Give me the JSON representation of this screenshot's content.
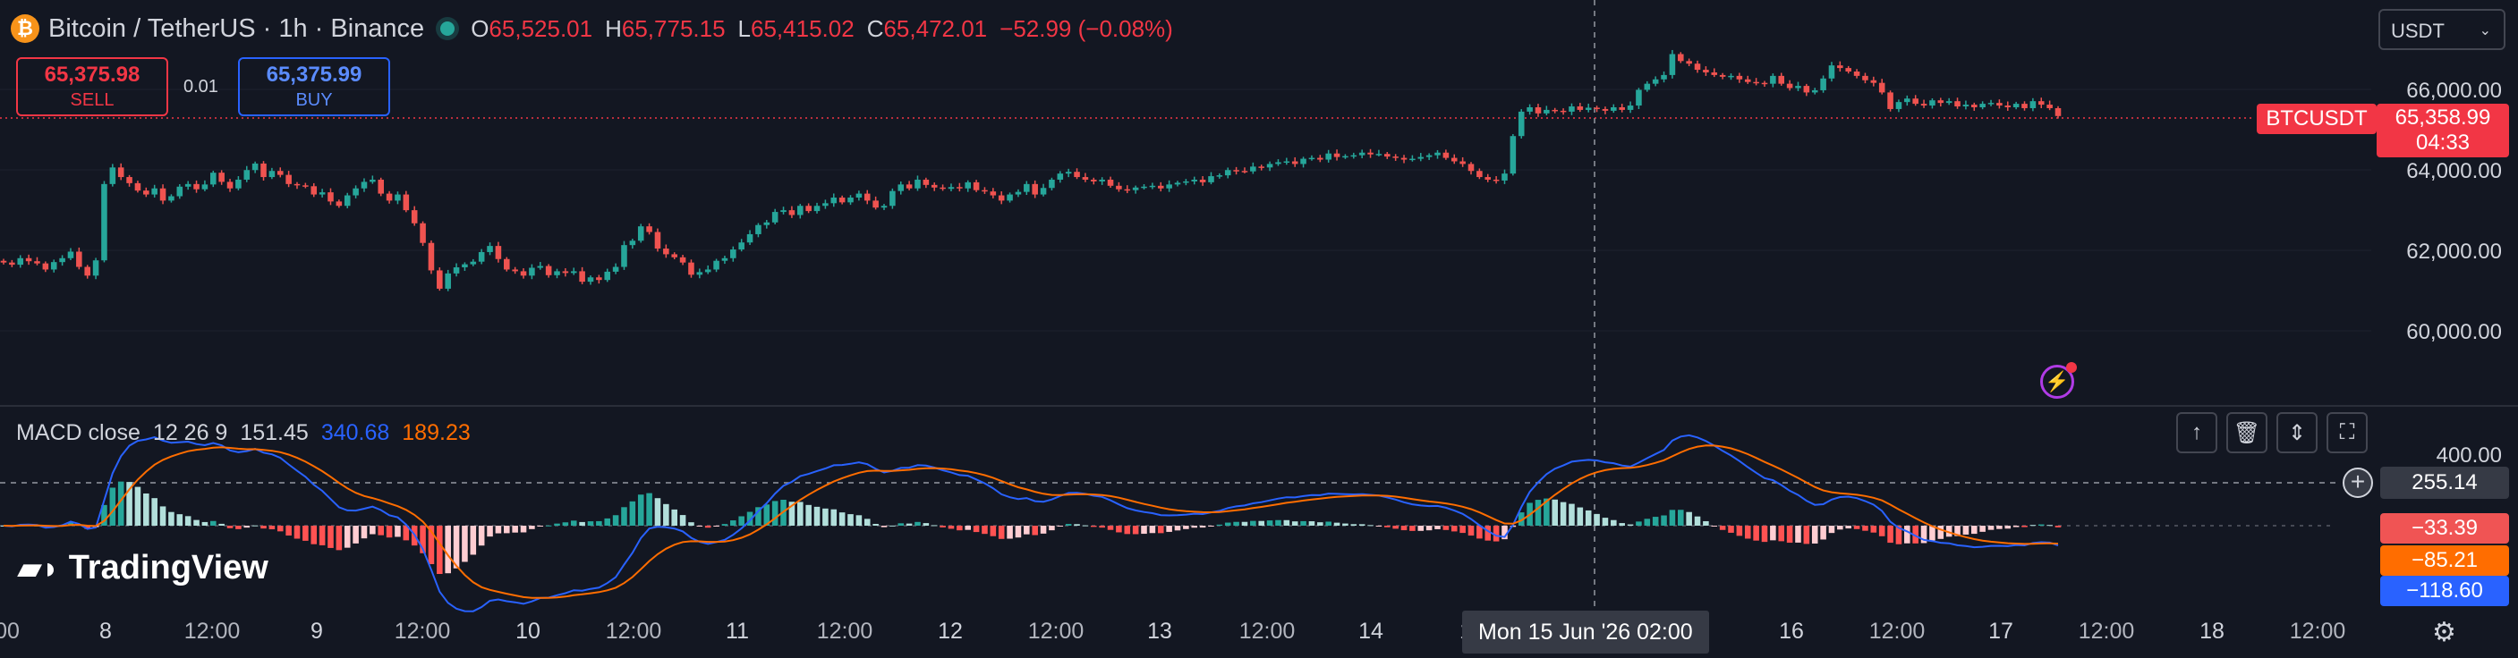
{
  "header": {
    "symbol_title": "Bitcoin / TetherUS · 1h · Binance",
    "ohlc": {
      "o_label": "O",
      "o_value": "65,525.01",
      "h_label": "H",
      "h_value": "65,775.15",
      "l_label": "L",
      "l_value": "65,415.02",
      "c_label": "C",
      "c_value": "65,472.01",
      "change": "−52.99 (−0.08%)"
    }
  },
  "trade": {
    "sell_price": "65,375.98",
    "sell_label": "SELL",
    "spread": "0.01",
    "buy_price": "65,375.99",
    "buy_label": "BUY"
  },
  "currency_select": {
    "value": "USDT"
  },
  "price_axis": {
    "labels": [
      "66,000.00",
      "64,000.00",
      "62,000.00",
      "60,000.00"
    ],
    "symbol_tag": "BTCUSDT",
    "last_price": "65,358.99",
    "countdown": "04:33"
  },
  "macd": {
    "legend_name": "MACD close",
    "params": "12 26 9",
    "histogram_value": "151.45",
    "macd_value": "340.68",
    "signal_value": "189.23",
    "axis_label_top": "400.00",
    "crosshair_value": "255.14",
    "tag_histogram": "−33.39",
    "tag_signal": "−85.21",
    "tag_macd": "−118.60"
  },
  "time_axis": {
    "labels": [
      "00",
      "8",
      "12:00",
      "9",
      "12:00",
      "10",
      "12:00",
      "11",
      "12:00",
      "12",
      "12:00",
      "13",
      "12:00",
      "14",
      "1",
      "16",
      "12:00",
      "17",
      "12:00",
      "18",
      "12:00"
    ],
    "crosshair_label": "Mon 15 Jun '26   02:00"
  },
  "branding": {
    "logo_text": "TradingView"
  },
  "colors": {
    "up": "#26a69a",
    "down": "#ef5350",
    "macd": "#2962ff",
    "signal": "#ff6d00",
    "background": "#131722"
  },
  "icons": [
    "bitcoin-icon",
    "market-status-dot-icon",
    "lightning-icon",
    "arrow-up-icon",
    "trash-icon",
    "collapse-icon",
    "maximize-icon",
    "plus-circle-icon",
    "gear-icon",
    "chevron-down-icon"
  ],
  "chart_data": {
    "type": "candlestick",
    "y_range": [
      59000,
      67200
    ],
    "closes": [
      62000,
      61950,
      62100,
      62030,
      61980,
      61840,
      62010,
      62100,
      62250,
      61900,
      61700,
      62050,
      63800,
      64180,
      63960,
      63820,
      63650,
      63560,
      63700,
      63420,
      63520,
      63740,
      63800,
      63680,
      63790,
      64060,
      63850,
      63700,
      63900,
      64120,
      64270,
      63960,
      64100,
      64010,
      63800,
      63770,
      63750,
      63560,
      63610,
      63400,
      63300,
      63540,
      63700,
      63850,
      63900,
      63580,
      63420,
      63560,
      63200,
      62900,
      62450,
      61820,
      61400,
      61750,
      61890,
      61960,
      62020,
      62240,
      62380,
      62080,
      61840,
      61800,
      61700,
      61880,
      61920,
      61710,
      61800,
      61760,
      61800,
      61560,
      61660,
      61600,
      61790,
      61900,
      62400,
      62500,
      62830,
      62700,
      62320,
      62190,
      62120,
      62000,
      61720,
      61780,
      61840,
      62040,
      62100,
      62300,
      62460,
      62650,
      62860,
      62920,
      63160,
      63200,
      63090,
      63300,
      63180,
      63300,
      63360,
      63490,
      63380,
      63490,
      63580,
      63420,
      63260,
      63300,
      63640,
      63790,
      63700,
      63900,
      63780,
      63720,
      63690,
      63730,
      63700,
      63840,
      63660,
      63630,
      63540,
      63420,
      63560,
      63620,
      63800,
      63560,
      63710,
      63900,
      64040,
      64080,
      63960,
      63900,
      63860,
      63900,
      63760,
      63680,
      63660,
      63720,
      63740,
      63760,
      63700,
      63790,
      63830,
      63860,
      63900,
      63840,
      63980,
      64000,
      64120,
      64100,
      64090,
      64200,
      64180,
      64260,
      64300,
      64320,
      64260,
      64380,
      64400,
      64360,
      64500,
      64420,
      64440,
      64460,
      64520,
      64480,
      64490,
      64430,
      64400,
      64360,
      64380,
      64420,
      64460,
      64520,
      64400,
      64320,
      64260,
      64100,
      63960,
      63900,
      63880,
      64040,
      64900,
      65460,
      65560,
      65420,
      65500,
      65480,
      65460,
      65580,
      65500,
      65550,
      65520,
      65480,
      65560,
      65500,
      65600,
      65960,
      66100,
      66200,
      66300,
      66780,
      66620,
      66560,
      66420,
      66360,
      66300,
      66260,
      66280,
      66200,
      66140,
      66120,
      66100,
      66280,
      66100,
      66000,
      66050,
      65900,
      65950,
      66220,
      66520,
      66460,
      66380,
      66280,
      66180,
      66120,
      65900,
      65520,
      65680,
      65760,
      65640,
      65600,
      65720,
      65660,
      65700,
      65580,
      65620,
      65560,
      65640,
      65660,
      65600,
      65560,
      65640,
      65540,
      65700,
      65620,
      65540,
      65358.99
    ]
  }
}
